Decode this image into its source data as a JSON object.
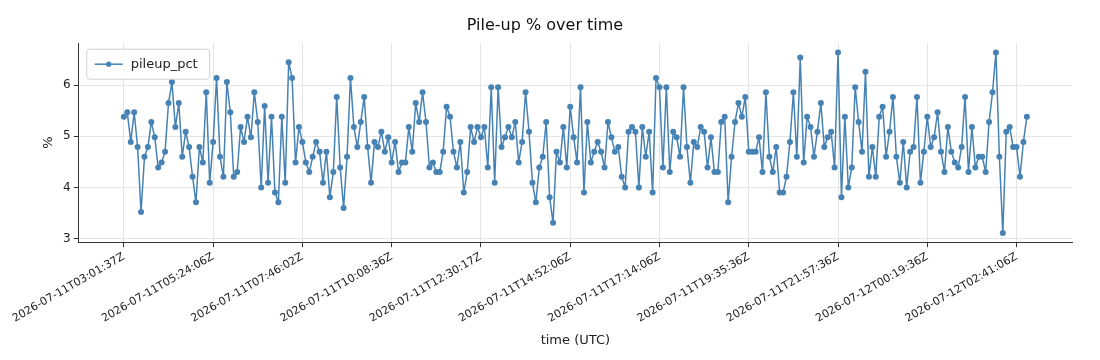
{
  "chart_data": {
    "type": "line",
    "title": "Pile-up % over time",
    "xlabel": "time (UTC)",
    "ylabel": "%",
    "categories": [
      "2026-07-11T03:01:37Z",
      null,
      null,
      null,
      null,
      null,
      null,
      null,
      null,
      null,
      null,
      null,
      null,
      null,
      null,
      null,
      null,
      null,
      null,
      null,
      null,
      null,
      null,
      null,
      null,
      null,
      "2026-07-11T05:24:06Z",
      null,
      null,
      null,
      null,
      null,
      null,
      null,
      null,
      null,
      null,
      null,
      null,
      null,
      null,
      null,
      null,
      null,
      null,
      null,
      null,
      null,
      null,
      null,
      null,
      null,
      "2026-07-11T07:46:02Z",
      null,
      null,
      null,
      null,
      null,
      null,
      null,
      null,
      null,
      null,
      null,
      null,
      null,
      null,
      null,
      null,
      null,
      null,
      null,
      null,
      null,
      null,
      null,
      null,
      null,
      "2026-07-11T10:08:36Z",
      null,
      null,
      null,
      null,
      null,
      null,
      null,
      null,
      null,
      null,
      null,
      null,
      null,
      null,
      null,
      null,
      null,
      null,
      null,
      null,
      null,
      null,
      null,
      null,
      null,
      "2026-07-11T12:30:17Z",
      null,
      null,
      null,
      null,
      null,
      null,
      null,
      null,
      null,
      null,
      null,
      null,
      null,
      null,
      null,
      null,
      null,
      null,
      null,
      null,
      null,
      null,
      null,
      null,
      null,
      "2026-07-11T14:52:06Z",
      null,
      null,
      null,
      null,
      null,
      null,
      null,
      null,
      null,
      null,
      null,
      null,
      null,
      null,
      null,
      null,
      null,
      null,
      null,
      null,
      null,
      null,
      null,
      null,
      null,
      "2026-07-11T17:14:06Z",
      null,
      null,
      null,
      null,
      null,
      null,
      null,
      null,
      null,
      null,
      null,
      null,
      null,
      null,
      null,
      null,
      null,
      null,
      null,
      null,
      null,
      null,
      null,
      null,
      null,
      "2026-07-11T19:35:36Z",
      null,
      null,
      null,
      null,
      null,
      null,
      null,
      null,
      null,
      null,
      null,
      null,
      null,
      null,
      null,
      null,
      null,
      null,
      null,
      null,
      null,
      null,
      null,
      null,
      null,
      "2026-07-11T21:57:36Z",
      null,
      null,
      null,
      null,
      null,
      null,
      null,
      null,
      null,
      null,
      null,
      null,
      null,
      null,
      null,
      null,
      null,
      null,
      null,
      null,
      null,
      null,
      null,
      null,
      null,
      "2026-07-12T00:19:36Z",
      null,
      null,
      null,
      null,
      null,
      null,
      null,
      null,
      null,
      null,
      null,
      null,
      null,
      null,
      null,
      null,
      null,
      null,
      null,
      null,
      null,
      null,
      null,
      null,
      null,
      "2026-07-12T02:41:06Z",
      null,
      null,
      null
    ],
    "series": [
      {
        "name": "pileup_pct",
        "color": "#4682b4",
        "values": [
          5.38,
          5.47,
          4.89,
          5.47,
          4.79,
          3.52,
          4.6,
          4.79,
          5.28,
          4.98,
          4.39,
          4.49,
          4.7,
          5.65,
          6.06,
          5.18,
          5.65,
          4.6,
          5.09,
          4.79,
          4.21,
          3.71,
          4.79,
          4.49,
          5.86,
          4.09,
          4.89,
          6.14,
          4.6,
          4.21,
          6.06,
          5.47,
          4.21,
          4.3,
          5.18,
          4.89,
          5.38,
          4.98,
          5.86,
          5.28,
          4.0,
          5.59,
          4.09,
          5.38,
          3.9,
          3.71,
          5.38,
          4.09,
          6.45,
          6.14,
          4.49,
          5.18,
          4.89,
          4.49,
          4.3,
          4.6,
          4.89,
          4.7,
          4.09,
          4.7,
          3.81,
          4.3,
          5.77,
          4.39,
          3.6,
          4.6,
          6.14,
          5.18,
          4.79,
          5.28,
          5.77,
          4.79,
          4.09,
          4.89,
          4.79,
          5.09,
          4.7,
          4.98,
          4.49,
          4.89,
          4.3,
          4.49,
          4.49,
          5.18,
          4.7,
          5.65,
          5.28,
          5.86,
          5.28,
          4.39,
          4.49,
          4.3,
          4.3,
          4.7,
          5.58,
          5.38,
          4.7,
          4.39,
          4.89,
          3.9,
          4.3,
          5.18,
          4.89,
          5.18,
          4.98,
          5.18,
          4.39,
          5.96,
          4.09,
          5.96,
          4.79,
          4.98,
          5.18,
          4.98,
          5.28,
          4.49,
          4.89,
          5.86,
          5.09,
          4.09,
          3.71,
          4.39,
          4.6,
          5.28,
          3.81,
          3.31,
          4.7,
          4.49,
          5.18,
          4.39,
          5.58,
          4.98,
          4.49,
          5.96,
          3.9,
          5.28,
          4.49,
          4.7,
          4.89,
          4.7,
          4.39,
          5.28,
          4.98,
          4.7,
          4.79,
          4.21,
          4.0,
          5.09,
          5.18,
          5.09,
          4.0,
          5.18,
          4.6,
          5.09,
          3.9,
          6.14,
          5.96,
          4.39,
          5.96,
          4.3,
          5.09,
          4.98,
          4.6,
          5.96,
          4.79,
          4.09,
          4.89,
          4.79,
          5.18,
          5.09,
          4.39,
          4.98,
          4.3,
          4.3,
          5.28,
          5.38,
          3.71,
          4.6,
          5.28,
          5.65,
          5.38,
          5.77,
          4.7,
          4.7,
          4.7,
          4.98,
          4.3,
          5.86,
          4.6,
          4.3,
          4.79,
          3.9,
          3.9,
          4.21,
          4.89,
          5.86,
          4.6,
          6.54,
          4.49,
          5.38,
          5.18,
          4.6,
          5.09,
          5.65,
          4.79,
          4.98,
          5.09,
          4.39,
          6.64,
          3.81,
          5.38,
          4.0,
          4.39,
          5.96,
          5.28,
          4.7,
          6.26,
          4.21,
          4.79,
          4.21,
          5.38,
          5.58,
          4.6,
          5.09,
          5.77,
          4.6,
          4.09,
          4.89,
          4.0,
          4.7,
          4.79,
          5.77,
          4.09,
          4.7,
          5.38,
          4.79,
          4.98,
          5.47,
          4.7,
          4.3,
          5.18,
          4.7,
          4.49,
          4.39,
          4.79,
          5.77,
          4.3,
          5.18,
          4.39,
          4.6,
          4.6,
          4.3,
          5.28,
          5.86,
          6.64,
          4.6,
          3.11,
          5.09,
          5.18,
          4.79,
          4.79,
          4.21,
          4.89,
          5.38
        ]
      }
    ],
    "ylim": [
      2.93,
      6.82
    ],
    "yticks": [
      3,
      4,
      5,
      6
    ],
    "grid": true,
    "legend": "top left",
    "marker": "circle",
    "line_style": "solid"
  }
}
